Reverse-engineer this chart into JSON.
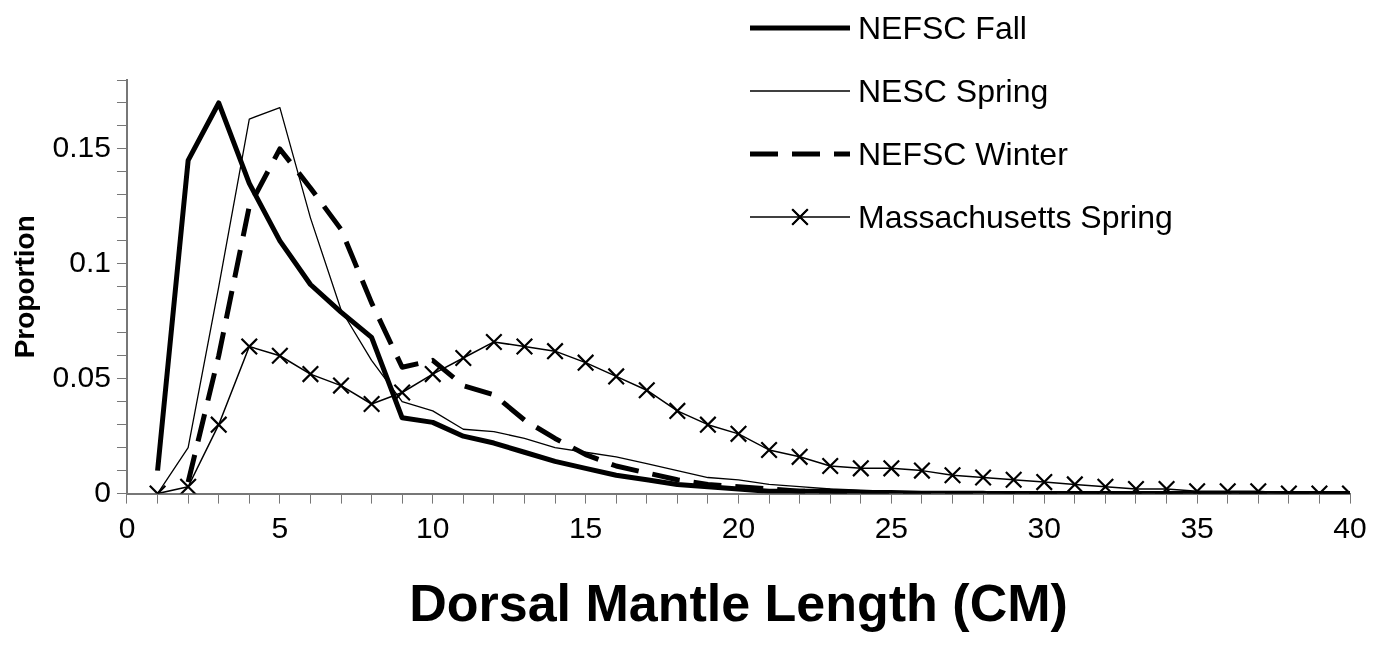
{
  "chart_data": {
    "type": "line",
    "xlabel": "Dorsal Mantle Length (CM)",
    "ylabel": "Proportion",
    "x": [
      1,
      2,
      3,
      4,
      5,
      6,
      7,
      8,
      9,
      10,
      11,
      12,
      13,
      14,
      15,
      16,
      17,
      18,
      19,
      20,
      21,
      22,
      23,
      24,
      25,
      26,
      27,
      28,
      29,
      30,
      31,
      32,
      33,
      34,
      35,
      36,
      37,
      38,
      39,
      40
    ],
    "series": [
      {
        "name": "NEFSC Fall",
        "color": "#000000",
        "line_style": "solid",
        "marker": "none",
        "values": [
          0.01,
          0.145,
          0.17,
          0.135,
          0.11,
          0.091,
          0.079,
          0.068,
          0.033,
          0.031,
          0.025,
          0.022,
          0.018,
          0.014,
          0.011,
          0.008,
          0.006,
          0.004,
          0.003,
          0.002,
          0.001,
          0.001,
          0.001,
          0.0005,
          0.0005,
          0,
          0,
          0,
          0,
          0,
          0,
          0,
          0,
          0,
          0,
          0,
          0,
          0,
          0,
          0
        ]
      },
      {
        "name": "NESC Spring",
        "color": "#000000",
        "line_style": "solid",
        "marker": "none",
        "values": [
          0,
          0.02,
          0.09,
          0.163,
          0.168,
          0.12,
          0.08,
          0.058,
          0.04,
          0.036,
          0.028,
          0.027,
          0.024,
          0.02,
          0.018,
          0.016,
          0.013,
          0.01,
          0.007,
          0.006,
          0.004,
          0.003,
          0.002,
          0.0015,
          0.001,
          0.001,
          0.001,
          0.001,
          0,
          0,
          0,
          0,
          0,
          0,
          0,
          0,
          0,
          0,
          0,
          0
        ]
      },
      {
        "name": "NEFSC Winter",
        "color": "#000000",
        "line_style": "dashed",
        "marker": "none",
        "values": [
          null,
          0.005,
          0.06,
          0.125,
          0.15,
          0.133,
          0.115,
          0.083,
          0.055,
          0.058,
          0.047,
          0.043,
          0.032,
          0.024,
          0.017,
          0.012,
          0.009,
          0.006,
          0.004,
          0.003,
          0.002,
          0.001,
          0.001,
          0,
          0,
          0,
          0,
          0,
          0,
          0,
          0,
          0,
          0,
          0,
          0,
          0,
          0,
          0,
          0,
          0
        ]
      },
      {
        "name": "Massachusetts Spring",
        "color": "#000000",
        "line_style": "solid",
        "marker": "cross",
        "values": [
          0,
          0.003,
          0.03,
          0.064,
          0.06,
          0.052,
          0.047,
          0.039,
          0.044,
          0.052,
          0.059,
          0.066,
          0.064,
          0.062,
          0.057,
          0.051,
          0.045,
          0.036,
          0.03,
          0.026,
          0.019,
          0.016,
          0.012,
          0.011,
          0.011,
          0.01,
          0.008,
          0.007,
          0.006,
          0.005,
          0.004,
          0.003,
          0.002,
          0.002,
          0.001,
          0.001,
          0.001,
          0,
          0,
          0
        ]
      }
    ],
    "xlim": [
      0,
      40
    ],
    "xticks": [
      0,
      {
        "value": 1,
        "label": null
      },
      {
        "value": 2,
        "label": null
      },
      {
        "value": 3,
        "label": null
      },
      {
        "value": 4,
        "label": null
      },
      5,
      {
        "value": 6,
        "label": null
      },
      {
        "value": 7,
        "label": null
      },
      {
        "value": 8,
        "label": null
      },
      {
        "value": 9,
        "label": null
      },
      10,
      {
        "value": 11,
        "label": null
      },
      {
        "value": 12,
        "label": null
      },
      {
        "value": 13,
        "label": null
      },
      {
        "value": 14,
        "label": null
      },
      15,
      {
        "value": 16,
        "label": null
      },
      {
        "value": 17,
        "label": null
      },
      {
        "value": 18,
        "label": null
      },
      {
        "value": 19,
        "label": null
      },
      20,
      {
        "value": 21,
        "label": null
      },
      {
        "value": 22,
        "label": null
      },
      {
        "value": 23,
        "label": null
      },
      {
        "value": 24,
        "label": null
      },
      25,
      {
        "value": 26,
        "label": null
      },
      {
        "value": 27,
        "label": null
      },
      {
        "value": 28,
        "label": null
      },
      {
        "value": 29,
        "label": null
      },
      30,
      {
        "value": 31,
        "label": null
      },
      {
        "value": 32,
        "label": null
      },
      {
        "value": 33,
        "label": null
      },
      {
        "value": 34,
        "label": null
      },
      35,
      {
        "value": 36,
        "label": null
      },
      {
        "value": 37,
        "label": null
      },
      {
        "value": 38,
        "label": null
      },
      {
        "value": 39,
        "label": null
      },
      40
    ],
    "ylim": [
      0,
      0.18
    ],
    "yticks": [
      0,
      {
        "value": 0.01,
        "label": null
      },
      {
        "value": 0.02,
        "label": null
      },
      {
        "value": 0.03,
        "label": null
      },
      {
        "value": 0.04,
        "label": null
      },
      0.05,
      {
        "value": 0.06,
        "label": null
      },
      {
        "value": 0.07,
        "label": null
      },
      {
        "value": 0.08,
        "label": null
      },
      {
        "value": 0.09,
        "label": null
      },
      0.1,
      {
        "value": 0.11,
        "label": null
      },
      {
        "value": 0.12,
        "label": null
      },
      {
        "value": 0.13,
        "label": null
      },
      {
        "value": 0.14,
        "label": null
      },
      0.15,
      {
        "value": 0.16,
        "label": null
      },
      {
        "value": 0.17,
        "label": null
      },
      {
        "value": 0.18,
        "label": null
      }
    ],
    "grid": false,
    "legend": "top right"
  }
}
